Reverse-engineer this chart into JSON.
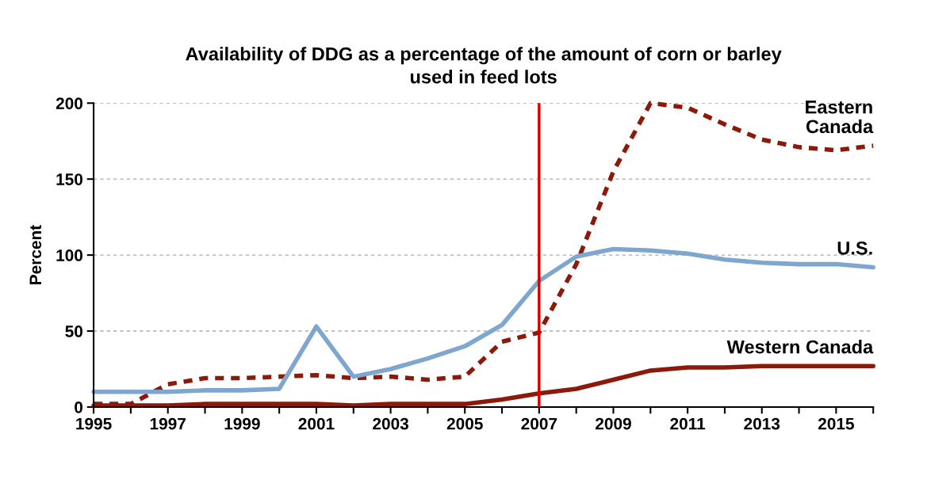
{
  "chart_data": {
    "type": "line",
    "title": "Availability of DDG as a percentage of the amount of corn or barley\nused in feed lots",
    "ylabel": "Percent",
    "x": [
      1995,
      1996,
      1997,
      1998,
      1999,
      2000,
      2001,
      2002,
      2003,
      2004,
      2005,
      2006,
      2007,
      2008,
      2009,
      2010,
      2011,
      2012,
      2013,
      2014,
      2015,
      2016
    ],
    "series": [
      {
        "name": "Eastern\nCanada",
        "color": "#8b1a0a",
        "line_style": "dashed",
        "values": [
          2,
          2,
          15,
          19,
          19,
          20,
          21,
          19,
          20,
          18,
          20,
          43,
          49,
          94,
          155,
          200,
          197,
          186,
          176,
          171,
          169,
          172
        ]
      },
      {
        "name": "U.S.",
        "color": "#7ea6cf",
        "line_style": "solid",
        "values": [
          10,
          10,
          10,
          11,
          11,
          12,
          53,
          20,
          25,
          32,
          40,
          54,
          83,
          99,
          104,
          103,
          101,
          97,
          95,
          94,
          94,
          92
        ]
      },
      {
        "name": "Western Canada",
        "color": "#8b1a0a",
        "line_style": "solid",
        "values": [
          1,
          1,
          1,
          2,
          2,
          2,
          2,
          1,
          2,
          2,
          2,
          5,
          9,
          12,
          18,
          24,
          26,
          26,
          27,
          27,
          27,
          27
        ]
      }
    ],
    "xlim": [
      1995,
      2016
    ],
    "xticks": [
      1995,
      {
        "value": 1996,
        "label": null
      },
      1997,
      {
        "value": 1998,
        "label": null
      },
      1999,
      {
        "value": 2000,
        "label": null
      },
      2001,
      {
        "value": 2002,
        "label": null
      },
      2003,
      {
        "value": 2004,
        "label": null
      },
      2005,
      {
        "value": 2006,
        "label": null
      },
      2007,
      {
        "value": 2008,
        "label": null
      },
      2009,
      {
        "value": 2010,
        "label": null
      },
      2011,
      {
        "value": 2012,
        "label": null
      },
      2013,
      {
        "value": 2014,
        "label": null
      },
      2015,
      {
        "value": 2016,
        "label": null
      }
    ],
    "ylim": [
      0,
      200
    ],
    "yticks": [
      0,
      50,
      100,
      150,
      200
    ],
    "ref_lines": [
      {
        "axis": "x",
        "value": 2007,
        "color": "#d40000"
      }
    ],
    "grid": "y",
    "legend": false,
    "marker": "none"
  }
}
